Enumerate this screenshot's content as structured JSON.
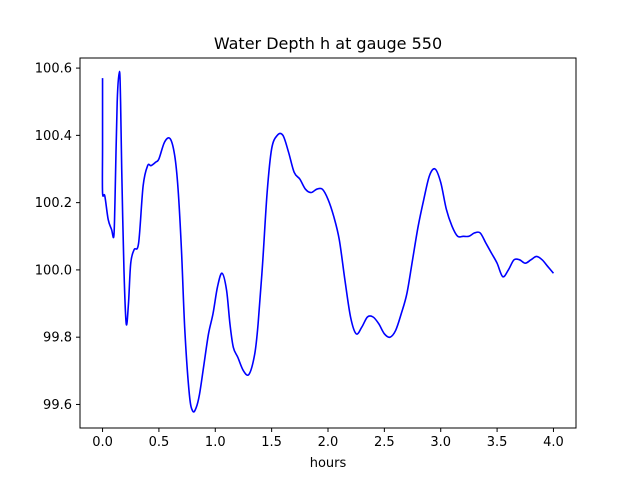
{
  "chart_data": {
    "type": "line",
    "title": "Water Depth h at gauge 550",
    "xlabel": "hours",
    "ylabel": "",
    "xlim": [
      -0.2,
      4.2
    ],
    "ylim": [
      99.53,
      100.63
    ],
    "xticks": [
      0.0,
      0.5,
      1.0,
      1.5,
      2.0,
      2.5,
      3.0,
      3.5,
      4.0
    ],
    "xtick_labels": [
      "0.0",
      "0.5",
      "1.0",
      "1.5",
      "2.0",
      "2.5",
      "3.0",
      "3.5",
      "4.0"
    ],
    "yticks": [
      99.6,
      99.8,
      100.0,
      100.2,
      100.4,
      100.6
    ],
    "ytick_labels": [
      "99.6",
      "99.8",
      "100.0",
      "100.2",
      "100.4",
      "100.6"
    ],
    "grid": false,
    "line_color": "#0000ff",
    "series": [
      {
        "x": [
          0.0,
          0.0,
          0.0,
          0.02,
          0.05,
          0.08,
          0.1,
          0.11,
          0.13,
          0.15,
          0.16,
          0.17,
          0.19,
          0.21,
          0.23,
          0.25,
          0.28,
          0.32,
          0.36,
          0.4,
          0.43,
          0.47,
          0.5,
          0.55,
          0.6,
          0.64,
          0.67,
          0.7,
          0.73,
          0.77,
          0.8,
          0.83,
          0.86,
          0.9,
          0.94,
          0.98,
          1.02,
          1.06,
          1.1,
          1.13,
          1.16,
          1.2,
          1.25,
          1.3,
          1.35,
          1.38,
          1.42,
          1.46,
          1.5,
          1.55,
          1.6,
          1.65,
          1.7,
          1.75,
          1.8,
          1.85,
          1.9,
          1.95,
          2.0,
          2.05,
          2.1,
          2.15,
          2.2,
          2.25,
          2.3,
          2.35,
          2.4,
          2.45,
          2.5,
          2.55,
          2.6,
          2.65,
          2.7,
          2.75,
          2.8,
          2.85,
          2.9,
          2.95,
          3.0,
          3.05,
          3.1,
          3.15,
          3.2,
          3.25,
          3.3,
          3.35,
          3.4,
          3.45,
          3.5,
          3.55,
          3.6,
          3.65,
          3.7,
          3.75,
          3.8,
          3.85,
          3.9,
          3.95,
          4.0
        ],
        "y": [
          100.57,
          100.37,
          100.23,
          100.22,
          100.15,
          100.12,
          100.1,
          100.2,
          100.5,
          100.59,
          100.5,
          100.3,
          100.0,
          99.84,
          99.9,
          100.02,
          100.06,
          100.08,
          100.25,
          100.31,
          100.31,
          100.32,
          100.33,
          100.38,
          100.39,
          100.34,
          100.24,
          100.06,
          99.82,
          99.63,
          99.58,
          99.59,
          99.63,
          99.72,
          99.81,
          99.87,
          99.95,
          99.99,
          99.94,
          99.84,
          99.77,
          99.74,
          99.7,
          99.69,
          99.75,
          99.84,
          100.02,
          100.23,
          100.36,
          100.4,
          100.4,
          100.35,
          100.29,
          100.27,
          100.24,
          100.23,
          100.24,
          100.24,
          100.21,
          100.16,
          100.09,
          99.97,
          99.86,
          99.81,
          99.83,
          99.86,
          99.86,
          99.84,
          99.81,
          99.8,
          99.82,
          99.87,
          99.93,
          100.03,
          100.13,
          100.21,
          100.28,
          100.3,
          100.26,
          100.18,
          100.13,
          100.1,
          100.1,
          100.1,
          100.11,
          100.11,
          100.08,
          100.05,
          100.02,
          99.98,
          100.0,
          100.03,
          100.03,
          100.02,
          100.03,
          100.04,
          100.03,
          100.01,
          99.99
        ]
      }
    ]
  }
}
